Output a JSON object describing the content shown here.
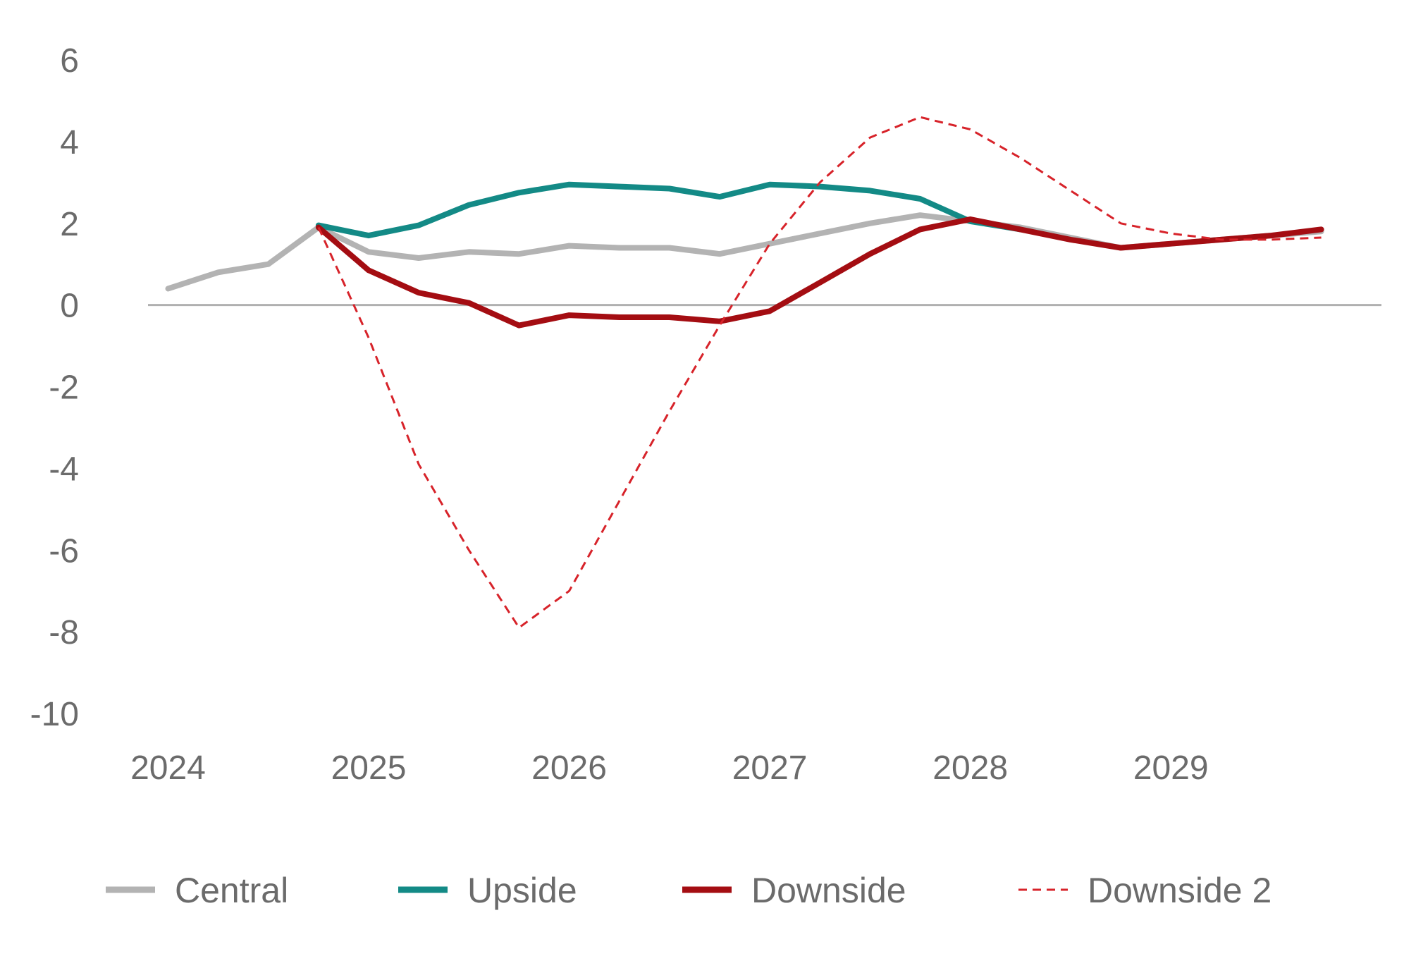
{
  "chart_data": {
    "type": "line",
    "title": "",
    "xlabel": "",
    "ylabel": "",
    "ylim": [
      -10,
      6
    ],
    "yticks": [
      "6",
      "4",
      "2",
      "0",
      "-2",
      "-4",
      "-6",
      "-8",
      "-10"
    ],
    "ytick_values": [
      6,
      4,
      2,
      0,
      -2,
      -4,
      -6,
      -8,
      -10
    ],
    "xticks": [
      "2024",
      "2025",
      "2026",
      "2027",
      "2028",
      "2029"
    ],
    "xtick_values": [
      2024,
      2025,
      2026,
      2027,
      2028,
      2029
    ],
    "xlim": [
      2023.9,
      2030.05
    ],
    "zero_line": true,
    "legend_position": "bottom",
    "series": [
      {
        "name": "Central",
        "color": "#b3b3b3",
        "style": "solid",
        "width": "thick",
        "points": [
          [
            2024.0,
            0.4
          ],
          [
            2024.25,
            0.8
          ],
          [
            2024.5,
            1.0
          ],
          [
            2024.75,
            1.9
          ],
          [
            2025.0,
            1.3
          ],
          [
            2025.25,
            1.15
          ],
          [
            2025.5,
            1.3
          ],
          [
            2025.75,
            1.25
          ],
          [
            2026.0,
            1.45
          ],
          [
            2026.25,
            1.4
          ],
          [
            2026.5,
            1.4
          ],
          [
            2026.75,
            1.25
          ],
          [
            2027.0,
            1.5
          ],
          [
            2027.25,
            1.75
          ],
          [
            2027.5,
            2.0
          ],
          [
            2027.75,
            2.2
          ],
          [
            2028.0,
            2.05
          ],
          [
            2028.25,
            1.9
          ],
          [
            2028.5,
            1.65
          ],
          [
            2028.75,
            1.4
          ],
          [
            2029.0,
            1.5
          ],
          [
            2029.25,
            1.6
          ],
          [
            2029.5,
            1.7
          ],
          [
            2029.75,
            1.8
          ]
        ]
      },
      {
        "name": "Upside",
        "color": "#138a86",
        "style": "solid",
        "width": "thick",
        "points": [
          [
            2024.75,
            1.95
          ],
          [
            2025.0,
            1.7
          ],
          [
            2025.25,
            1.95
          ],
          [
            2025.5,
            2.45
          ],
          [
            2025.75,
            2.75
          ],
          [
            2026.0,
            2.95
          ],
          [
            2026.25,
            2.9
          ],
          [
            2026.5,
            2.85
          ],
          [
            2026.75,
            2.65
          ],
          [
            2027.0,
            2.95
          ],
          [
            2027.25,
            2.9
          ],
          [
            2027.5,
            2.8
          ],
          [
            2027.75,
            2.6
          ],
          [
            2028.0,
            2.05
          ],
          [
            2028.25,
            1.85
          ]
        ]
      },
      {
        "name": "Downside",
        "color": "#a40d12",
        "style": "solid",
        "width": "thick",
        "points": [
          [
            2024.75,
            1.9
          ],
          [
            2025.0,
            0.85
          ],
          [
            2025.25,
            0.3
          ],
          [
            2025.5,
            0.05
          ],
          [
            2025.75,
            -0.5
          ],
          [
            2026.0,
            -0.25
          ],
          [
            2026.25,
            -0.3
          ],
          [
            2026.5,
            -0.3
          ],
          [
            2026.75,
            -0.4
          ],
          [
            2027.0,
            -0.15
          ],
          [
            2027.25,
            0.55
          ],
          [
            2027.5,
            1.25
          ],
          [
            2027.75,
            1.85
          ],
          [
            2028.0,
            2.1
          ],
          [
            2028.25,
            1.85
          ],
          [
            2028.5,
            1.6
          ],
          [
            2028.75,
            1.4
          ],
          [
            2029.0,
            1.5
          ],
          [
            2029.25,
            1.6
          ],
          [
            2029.5,
            1.7
          ],
          [
            2029.75,
            1.85
          ]
        ]
      },
      {
        "name": "Downside 2",
        "color": "#d7232a",
        "style": "dashed",
        "width": "thin",
        "points": [
          [
            2024.75,
            1.9
          ],
          [
            2025.0,
            -0.8
          ],
          [
            2025.25,
            -3.9
          ],
          [
            2025.5,
            -6.0
          ],
          [
            2025.75,
            -7.9
          ],
          [
            2026.0,
            -7.0
          ],
          [
            2026.25,
            -4.8
          ],
          [
            2026.5,
            -2.6
          ],
          [
            2026.75,
            -0.5
          ],
          [
            2027.0,
            1.5
          ],
          [
            2027.25,
            3.0
          ],
          [
            2027.5,
            4.1
          ],
          [
            2027.75,
            4.6
          ],
          [
            2028.0,
            4.3
          ],
          [
            2028.25,
            3.6
          ],
          [
            2028.5,
            2.8
          ],
          [
            2028.75,
            2.0
          ],
          [
            2029.0,
            1.75
          ],
          [
            2029.25,
            1.6
          ],
          [
            2029.5,
            1.6
          ],
          [
            2029.75,
            1.65
          ]
        ]
      }
    ]
  }
}
